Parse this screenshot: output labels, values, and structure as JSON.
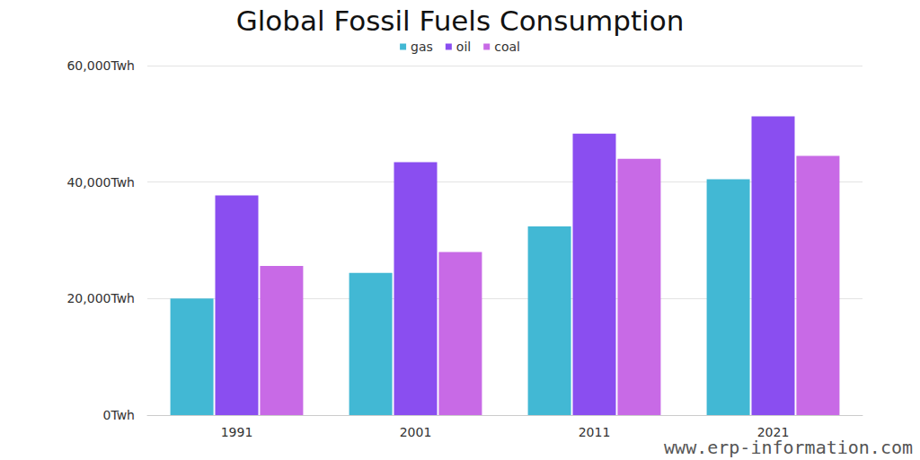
{
  "chart_data": {
    "type": "bar",
    "title": "Global Fossil Fuels Consumption",
    "categories": [
      "1991",
      "2001",
      "2011",
      "2021"
    ],
    "series": [
      {
        "name": "gas",
        "color": "#42b8d4",
        "values": [
          20000,
          24400,
          32400,
          40500
        ]
      },
      {
        "name": "oil",
        "color": "#8a4ef0",
        "values": [
          37700,
          43400,
          48300,
          51300
        ]
      },
      {
        "name": "coal",
        "color": "#c86ae6",
        "values": [
          25600,
          28000,
          44000,
          44500
        ]
      }
    ],
    "ylim": [
      0,
      60000
    ],
    "yticks": [
      {
        "value": 0,
        "label": "0Twh"
      },
      {
        "value": 20000,
        "label": "20,000Twh"
      },
      {
        "value": 40000,
        "label": "40,000Twh"
      },
      {
        "value": 60000,
        "label": "60,000Twh"
      }
    ],
    "grid": true,
    "legend": "top",
    "annotations": [
      "www.erp-information.com"
    ]
  }
}
